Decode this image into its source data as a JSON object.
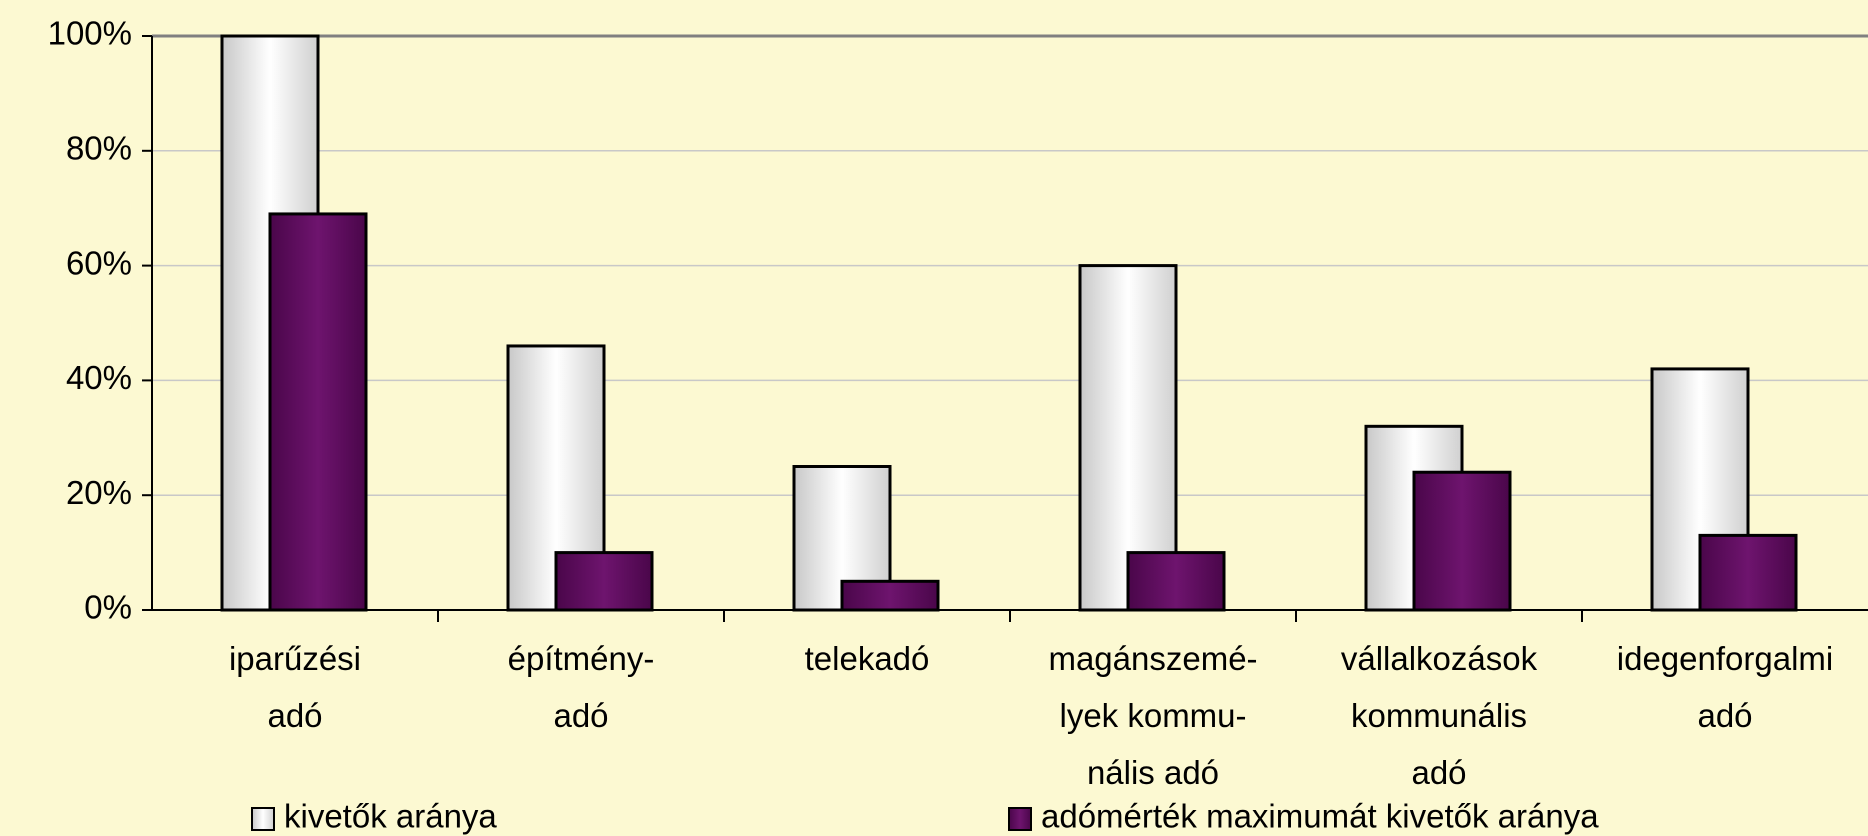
{
  "chart_data": {
    "type": "bar",
    "categories": [
      [
        "iparűzési",
        "adó"
      ],
      [
        "építmény-",
        "adó"
      ],
      [
        "telekadó"
      ],
      [
        "magánszemé-",
        "lyek kommu-",
        "nális adó"
      ],
      [
        "vállalkozások",
        "kommunális",
        "adó"
      ],
      [
        "idegenforgalmi",
        "adó"
      ]
    ],
    "series": [
      {
        "name": "kivetők aránya",
        "color": "#e8e8e8",
        "values": [
          100,
          46,
          25,
          60,
          32,
          42
        ]
      },
      {
        "name": "adómérték maximumát kivetők aránya",
        "color": "#5c0a5c",
        "values": [
          69,
          10,
          5,
          10,
          24,
          13
        ]
      }
    ],
    "ylim": [
      0,
      100
    ],
    "yticks": [
      {
        "value": 0,
        "label": "0%"
      },
      {
        "value": 20,
        "label": "20%"
      },
      {
        "value": 40,
        "label": "40%"
      },
      {
        "value": 60,
        "label": "60%"
      },
      {
        "value": 80,
        "label": "80%"
      },
      {
        "value": 100,
        "label": "100%"
      }
    ],
    "grid": true,
    "legend": "bottom"
  }
}
